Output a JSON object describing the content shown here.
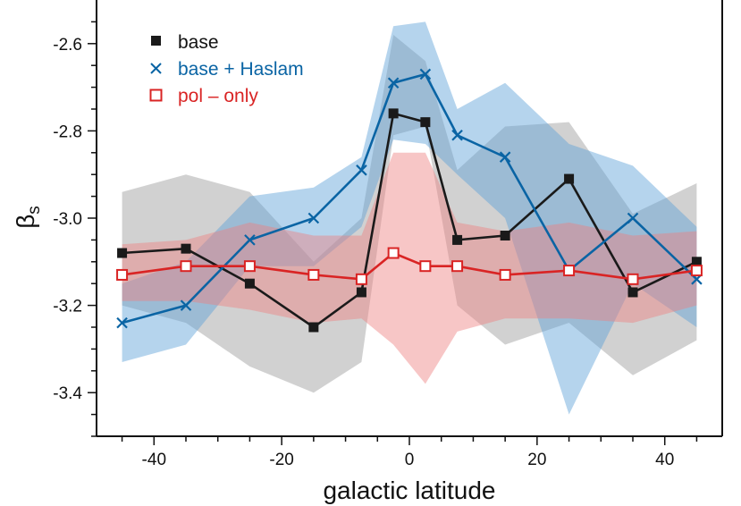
{
  "chart_data": {
    "type": "line",
    "title": "",
    "xlabel": "galactic latitude",
    "ylabel_main": "β",
    "ylabel_sub": "s",
    "xlim": [
      -49,
      49
    ],
    "ylim": [
      -3.5,
      -2.5
    ],
    "xticks": [
      -40,
      -20,
      0,
      20,
      40
    ],
    "yticks": [
      -2.6,
      -2.8,
      -3.0,
      -3.2,
      -3.4
    ],
    "xtick_labels": [
      "-40",
      "-20",
      "0",
      "20",
      "40"
    ],
    "ytick_labels": [
      "-2.6",
      "-2.8",
      "-3.0",
      "-3.2",
      "-3.4"
    ],
    "grid": false,
    "legend_position": "top-left",
    "x": [
      -45,
      -35,
      -25,
      -15,
      -7.5,
      -2.5,
      2.5,
      7.5,
      15,
      25,
      35,
      45
    ],
    "series": [
      {
        "name": "base",
        "color": "#1a1a1a",
        "marker": "filled-square",
        "values": [
          -3.08,
          -3.07,
          -3.15,
          -3.25,
          -3.17,
          -2.76,
          -2.78,
          -3.05,
          -3.04,
          -2.91,
          -3.17,
          -3.1
        ],
        "band_lower": [
          -3.2,
          -3.24,
          -3.34,
          -3.4,
          -3.33,
          -2.81,
          -2.79,
          -3.2,
          -3.29,
          -3.24,
          -3.36,
          -3.28
        ],
        "band_upper": [
          -2.94,
          -2.9,
          -2.94,
          -3.1,
          -3.0,
          -2.58,
          -2.64,
          -2.89,
          -2.79,
          -2.78,
          -2.99,
          -2.92
        ],
        "band_color": "#9a9a9a"
      },
      {
        "name": "base + Haslam",
        "color": "#0a64a4",
        "marker": "x",
        "values": [
          -3.24,
          -3.2,
          -3.05,
          -3.0,
          -2.89,
          -2.69,
          -2.67,
          -2.81,
          -2.86,
          -3.12,
          -3.0,
          -3.14
        ],
        "band_lower": [
          -3.33,
          -3.29,
          -3.11,
          -3.11,
          -3.02,
          -2.82,
          -2.83,
          -2.9,
          -3.0,
          -3.45,
          -3.15,
          -3.25
        ],
        "band_upper": [
          -3.15,
          -3.1,
          -2.95,
          -2.93,
          -2.86,
          -2.56,
          -2.55,
          -2.75,
          -2.69,
          -2.83,
          -2.88,
          -3.02
        ],
        "band_color": "#5aa0d6"
      },
      {
        "name": "pol – only",
        "color": "#d92424",
        "marker": "open-square",
        "values": [
          -3.13,
          -3.11,
          -3.11,
          -3.13,
          -3.14,
          -3.08,
          -3.11,
          -3.11,
          -3.13,
          -3.12,
          -3.14,
          -3.12
        ],
        "band_lower": [
          -3.19,
          -3.19,
          -3.21,
          -3.24,
          -3.23,
          -3.29,
          -3.38,
          -3.26,
          -3.23,
          -3.23,
          -3.24,
          -3.2
        ],
        "band_upper": [
          -3.06,
          -3.05,
          -3.01,
          -3.04,
          -3.04,
          -2.85,
          -2.85,
          -3.01,
          -3.03,
          -3.01,
          -3.04,
          -3.03
        ],
        "band_color": "#ee8080"
      }
    ]
  }
}
